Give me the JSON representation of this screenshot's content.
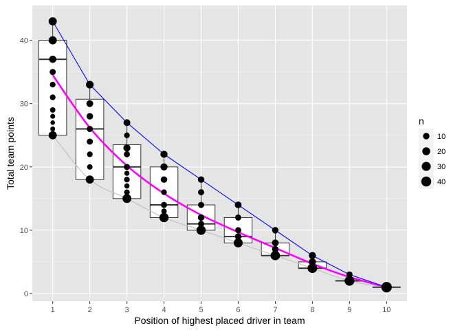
{
  "chart_data": {
    "type": "boxplot",
    "xlabel": "Position of highest placed driver in team",
    "ylabel": "Total team points",
    "x_ticks": [
      "1",
      "2",
      "3",
      "4",
      "5",
      "6",
      "7",
      "8",
      "9",
      "10"
    ],
    "y_ticks": [
      "0",
      "10",
      "20",
      "30",
      "40"
    ],
    "xlim": [
      0.45,
      10.55
    ],
    "ylim": [
      -1.2,
      45.5
    ],
    "grid": true,
    "background": "#e5e5e5",
    "boxes": [
      {
        "x": 1,
        "q1": 25,
        "median": 37,
        "q3": 40,
        "min": 25,
        "max": 43
      },
      {
        "x": 2,
        "q1": 18,
        "median": 26,
        "q3": 30.7,
        "min": 18,
        "max": 33
      },
      {
        "x": 3,
        "q1": 15,
        "median": 20,
        "q3": 23.5,
        "min": 15,
        "max": 27
      },
      {
        "x": 4,
        "q1": 12,
        "median": 14,
        "q3": 20,
        "min": 12,
        "max": 22
      },
      {
        "x": 5,
        "q1": 10,
        "median": 11,
        "q3": 14,
        "min": 10,
        "max": 18
      },
      {
        "x": 6,
        "q1": 8,
        "median": 9,
        "q3": 12,
        "min": 8,
        "max": 14
      },
      {
        "x": 7,
        "q1": 6,
        "median": 6,
        "q3": 8,
        "min": 6,
        "max": 10
      },
      {
        "x": 8,
        "q1": 4,
        "median": 4,
        "q3": 5,
        "min": 4,
        "max": 6
      },
      {
        "x": 9,
        "q1": 2,
        "median": 2,
        "q3": 2,
        "min": 2,
        "max": 3
      },
      {
        "x": 10,
        "q1": 1,
        "median": 1,
        "q3": 1,
        "min": 1,
        "max": 1
      }
    ],
    "points": [
      {
        "x": 1,
        "y": 43,
        "n": 22
      },
      {
        "x": 1,
        "y": 40,
        "n": 22
      },
      {
        "x": 1,
        "y": 37,
        "n": 15
      },
      {
        "x": 1,
        "y": 35,
        "n": 8
      },
      {
        "x": 1,
        "y": 33,
        "n": 6
      },
      {
        "x": 1,
        "y": 31,
        "n": 6
      },
      {
        "x": 1,
        "y": 29,
        "n": 5
      },
      {
        "x": 1,
        "y": 28,
        "n": 3
      },
      {
        "x": 1,
        "y": 27,
        "n": 2
      },
      {
        "x": 1,
        "y": 26,
        "n": 3
      },
      {
        "x": 1,
        "y": 25,
        "n": 22
      },
      {
        "x": 2,
        "y": 33,
        "n": 18
      },
      {
        "x": 2,
        "y": 30,
        "n": 12
      },
      {
        "x": 2,
        "y": 28,
        "n": 10
      },
      {
        "x": 2,
        "y": 26,
        "n": 8
      },
      {
        "x": 2,
        "y": 24,
        "n": 8
      },
      {
        "x": 2,
        "y": 22,
        "n": 6
      },
      {
        "x": 2,
        "y": 20,
        "n": 5
      },
      {
        "x": 2,
        "y": 18,
        "n": 22
      },
      {
        "x": 3,
        "y": 27,
        "n": 12
      },
      {
        "x": 3,
        "y": 25,
        "n": 6
      },
      {
        "x": 3,
        "y": 23,
        "n": 14
      },
      {
        "x": 3,
        "y": 22,
        "n": 8
      },
      {
        "x": 3,
        "y": 20,
        "n": 8
      },
      {
        "x": 3,
        "y": 19,
        "n": 4
      },
      {
        "x": 3,
        "y": 18,
        "n": 6
      },
      {
        "x": 3,
        "y": 17,
        "n": 4
      },
      {
        "x": 3,
        "y": 16,
        "n": 6
      },
      {
        "x": 3,
        "y": 15,
        "n": 28
      },
      {
        "x": 4,
        "y": 22,
        "n": 14
      },
      {
        "x": 4,
        "y": 20,
        "n": 14
      },
      {
        "x": 4,
        "y": 18,
        "n": 10
      },
      {
        "x": 4,
        "y": 16,
        "n": 6
      },
      {
        "x": 4,
        "y": 14,
        "n": 8
      },
      {
        "x": 4,
        "y": 13,
        "n": 5
      },
      {
        "x": 4,
        "y": 12,
        "n": 32
      },
      {
        "x": 5,
        "y": 18,
        "n": 10
      },
      {
        "x": 5,
        "y": 16,
        "n": 8
      },
      {
        "x": 5,
        "y": 14,
        "n": 8
      },
      {
        "x": 5,
        "y": 12,
        "n": 10
      },
      {
        "x": 5,
        "y": 11,
        "n": 8
      },
      {
        "x": 5,
        "y": 10,
        "n": 32
      },
      {
        "x": 6,
        "y": 14,
        "n": 12
      },
      {
        "x": 6,
        "y": 12,
        "n": 8
      },
      {
        "x": 6,
        "y": 10,
        "n": 8
      },
      {
        "x": 6,
        "y": 9,
        "n": 10
      },
      {
        "x": 6,
        "y": 8,
        "n": 30
      },
      {
        "x": 7,
        "y": 10,
        "n": 10
      },
      {
        "x": 7,
        "y": 8,
        "n": 12
      },
      {
        "x": 7,
        "y": 7,
        "n": 10
      },
      {
        "x": 7,
        "y": 6,
        "n": 34
      },
      {
        "x": 8,
        "y": 6,
        "n": 14
      },
      {
        "x": 8,
        "y": 5,
        "n": 14
      },
      {
        "x": 8,
        "y": 4,
        "n": 36
      },
      {
        "x": 9,
        "y": 3,
        "n": 8
      },
      {
        "x": 9,
        "y": 2,
        "n": 38
      },
      {
        "x": 10,
        "y": 1,
        "n": 46
      }
    ],
    "lines": [
      {
        "color": "#0000ff",
        "width": 1.1,
        "smooth": false,
        "y": [
          43,
          33,
          27,
          22,
          18,
          14,
          10,
          6,
          3,
          1
        ]
      },
      {
        "color": "#ff00ff",
        "width": 2.6,
        "smooth": true,
        "y": [
          34.5,
          26.2,
          20.2,
          15.8,
          12.4,
          9.7,
          7.2,
          4.7,
          2.6,
          1
        ]
      },
      {
        "color": "#bebebe",
        "width": 1.1,
        "smooth": true,
        "y": [
          25,
          18,
          15,
          12,
          10,
          8,
          6,
          4,
          2,
          1
        ]
      }
    ],
    "legend": {
      "title": "n",
      "placement": "right",
      "entries": [
        {
          "label": "10",
          "n": 10
        },
        {
          "label": "20",
          "n": 20
        },
        {
          "label": "30",
          "n": 30
        },
        {
          "label": "40",
          "n": 40
        }
      ]
    }
  }
}
